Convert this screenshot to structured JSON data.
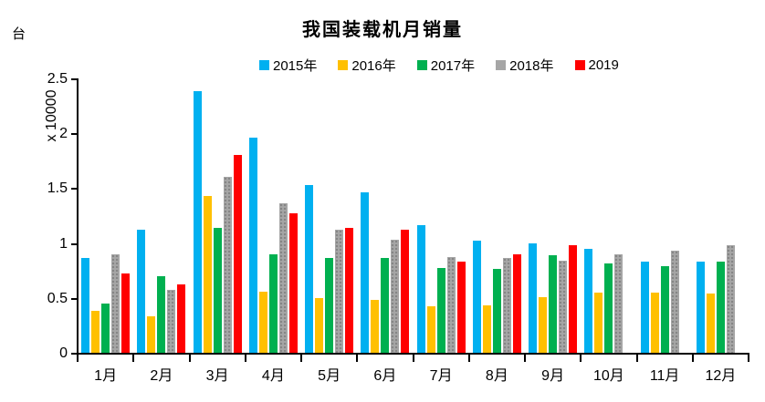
{
  "chart_data": {
    "type": "bar",
    "title": "我国装载机月销量",
    "y_unit_label": "台",
    "y_scale_label": "x 10000",
    "categories": [
      "1月",
      "2月",
      "3月",
      "4月",
      "5月",
      "6月",
      "7月",
      "8月",
      "9月",
      "10月",
      "11月",
      "12月"
    ],
    "series": [
      {
        "name": "2015年",
        "color": "#00B0F0",
        "texture": "solid",
        "values": [
          0.86,
          1.12,
          2.38,
          1.96,
          1.53,
          1.46,
          1.16,
          1.02,
          1.0,
          0.95,
          0.83,
          0.83
        ]
      },
      {
        "name": "2016年",
        "color": "#FFC000",
        "texture": "solid",
        "values": [
          0.38,
          0.33,
          1.43,
          0.56,
          0.5,
          0.48,
          0.42,
          0.43,
          0.51,
          0.55,
          0.55,
          0.54
        ]
      },
      {
        "name": "2017年",
        "color": "#00B050",
        "texture": "solid",
        "values": [
          0.45,
          0.7,
          1.14,
          0.9,
          0.86,
          0.86,
          0.77,
          0.76,
          0.89,
          0.81,
          0.79,
          0.83
        ]
      },
      {
        "name": "2018年",
        "color": "#A6A6A6",
        "texture": "dots",
        "values": [
          0.9,
          0.57,
          1.6,
          1.36,
          1.12,
          1.03,
          0.87,
          0.86,
          0.84,
          0.9,
          0.93,
          0.98
        ]
      },
      {
        "name": "2019",
        "color": "#FF0000",
        "texture": "solid",
        "values": [
          0.72,
          0.62,
          1.8,
          1.27,
          1.14,
          1.12,
          0.83,
          0.9,
          0.98,
          null,
          null,
          null
        ]
      }
    ],
    "ylim": [
      0,
      2.5
    ],
    "y_ticks": [
      0,
      0.5,
      1,
      1.5,
      2,
      2.5
    ],
    "y_tick_labels": [
      "0",
      "0.5",
      "1",
      "1.5",
      "2",
      "2.5"
    ],
    "legend_position": "top",
    "grid": false,
    "axis_color": "#000000",
    "background_color": "#FFFFFF"
  }
}
